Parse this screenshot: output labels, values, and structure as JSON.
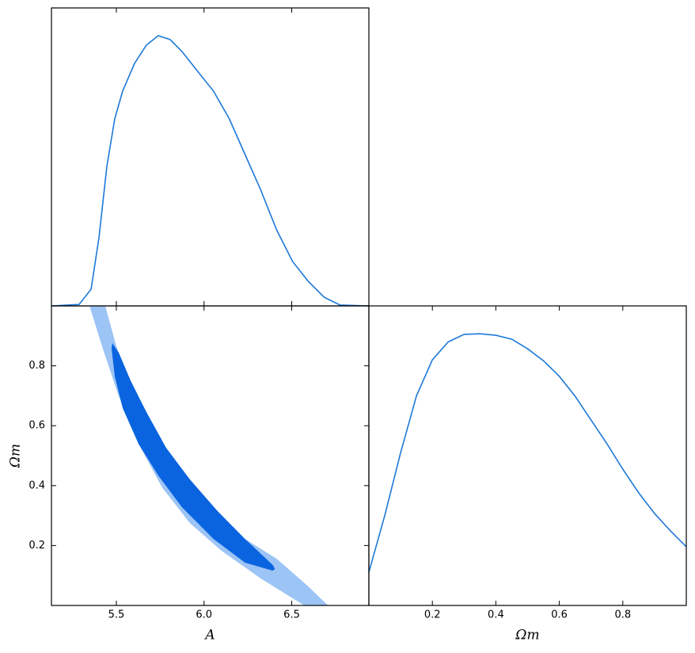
{
  "chart_data": [
    {
      "type": "line",
      "color": "#1c78d8",
      "x": [
        5.13,
        5.288,
        5.356,
        5.401,
        5.446,
        5.491,
        5.536,
        5.604,
        5.671,
        5.739,
        5.806,
        5.874,
        5.964,
        6.054,
        6.144,
        6.234,
        6.324,
        6.414,
        6.505,
        6.595,
        6.685,
        6.775,
        6.94
      ],
      "values": [
        0,
        0.005,
        0.056,
        0.229,
        0.468,
        0.628,
        0.721,
        0.814,
        0.875,
        0.907,
        0.894,
        0.854,
        0.787,
        0.721,
        0.628,
        0.508,
        0.388,
        0.255,
        0.149,
        0.082,
        0.029,
        0.003,
        0
      ],
      "xlim": [
        5.13,
        6.94
      ],
      "ylim": [
        0,
        1
      ],
      "xticks": [
        5.5,
        {
          "value": 6,
          "label": "6.0"
        },
        6.5
      ],
      "tick_labels": false
    },
    {
      "type": "contour",
      "xlabel": "A",
      "ylabel": "Ωm",
      "xlim": [
        5.13,
        6.94
      ],
      "ylim": [
        0,
        1
      ],
      "xticks": [
        5.5,
        {
          "value": 6,
          "label": "6.0"
        },
        6.5
      ],
      "yticks": [
        0.2,
        0.4,
        0.6,
        0.8
      ],
      "tick_labels": true,
      "contours": [
        {
          "color": "#9cc4f5",
          "x": [
            5.347,
            5.423,
            5.514,
            5.626,
            5.761,
            5.919,
            6.099,
            6.324,
            6.572,
            6.707,
            6.595,
            6.414,
            6.234,
            6.054,
            5.896,
            5.761,
            5.649,
            5.559,
            5.491,
            5.437
          ],
          "y": [
            1.0,
            0.857,
            0.698,
            0.54,
            0.394,
            0.275,
            0.183,
            0.09,
            0.0,
            0.0,
            0.063,
            0.156,
            0.222,
            0.302,
            0.394,
            0.5,
            0.619,
            0.751,
            0.884,
            1.0
          ]
        },
        {
          "color": "#0a64e0",
          "x": [
            5.477,
            5.514,
            5.581,
            5.671,
            5.784,
            5.919,
            6.077,
            6.234,
            6.392,
            6.405,
            6.392,
            6.234,
            6.054,
            5.874,
            5.739,
            5.626,
            5.536,
            5.491,
            5.473
          ],
          "y": [
            0.876,
            0.844,
            0.751,
            0.646,
            0.526,
            0.421,
            0.315,
            0.222,
            0.135,
            0.122,
            0.116,
            0.143,
            0.222,
            0.328,
            0.434,
            0.54,
            0.659,
            0.765,
            0.857
          ]
        }
      ]
    },
    {
      "type": "line",
      "xlabel": "Ωm",
      "color": "#1c78d8",
      "x": [
        0,
        0.05,
        0.1,
        0.15,
        0.2,
        0.25,
        0.3,
        0.35,
        0.4,
        0.45,
        0.5,
        0.55,
        0.6,
        0.65,
        0.7,
        0.75,
        0.8,
        0.85,
        0.9,
        0.95,
        1.0
      ],
      "values": [
        0.111,
        0.3,
        0.51,
        0.7,
        0.82,
        0.88,
        0.905,
        0.907,
        0.902,
        0.889,
        0.857,
        0.817,
        0.765,
        0.698,
        0.619,
        0.54,
        0.455,
        0.376,
        0.307,
        0.249,
        0.196
      ],
      "xlim": [
        0,
        1
      ],
      "ylim": [
        0,
        1
      ],
      "xticks": [
        0.2,
        0.4,
        0.6,
        0.8
      ],
      "tick_labels": true
    }
  ]
}
